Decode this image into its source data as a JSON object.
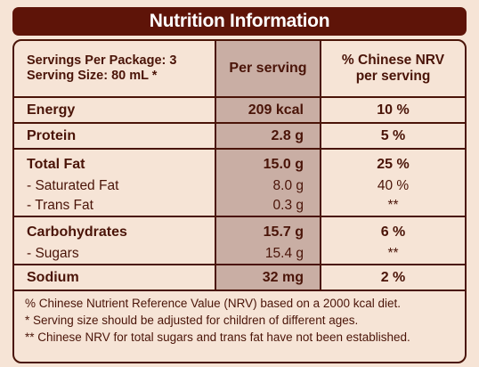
{
  "title": "Nutrition Information",
  "header": {
    "servings_per_package": "Servings Per Package: 3",
    "serving_size": "Serving Size: 80 mL *",
    "per_serving": "Per serving",
    "nrv_line1": "% Chinese NRV",
    "nrv_line2": "per serving"
  },
  "rows": [
    {
      "label": "Energy",
      "value": "209 kcal",
      "nrv": "10 %"
    },
    {
      "label": "Protein",
      "value": "2.8 g",
      "nrv": "5 %"
    },
    {
      "label": "Total Fat",
      "value": "15.0 g",
      "nrv": "25 %"
    },
    {
      "label": "- Saturated Fat",
      "value": "8.0 g",
      "nrv": "40 %"
    },
    {
      "label": "- Trans Fat",
      "value": "0.3 g",
      "nrv": "**"
    },
    {
      "label": "Carbohydrates",
      "value": "15.7 g",
      "nrv": "6 %"
    },
    {
      "label": "- Sugars",
      "value": "15.4 g",
      "nrv": "**"
    },
    {
      "label": "Sodium",
      "value": "32 mg",
      "nrv": "2 %"
    }
  ],
  "footnotes": [
    "% Chinese Nutrient Reference Value (NRV) based on a 2000 kcal diet.",
    "*   Serving size should be adjusted for children of different ages.",
    "** Chinese NRV for total sugars and trans fat have not been established."
  ]
}
